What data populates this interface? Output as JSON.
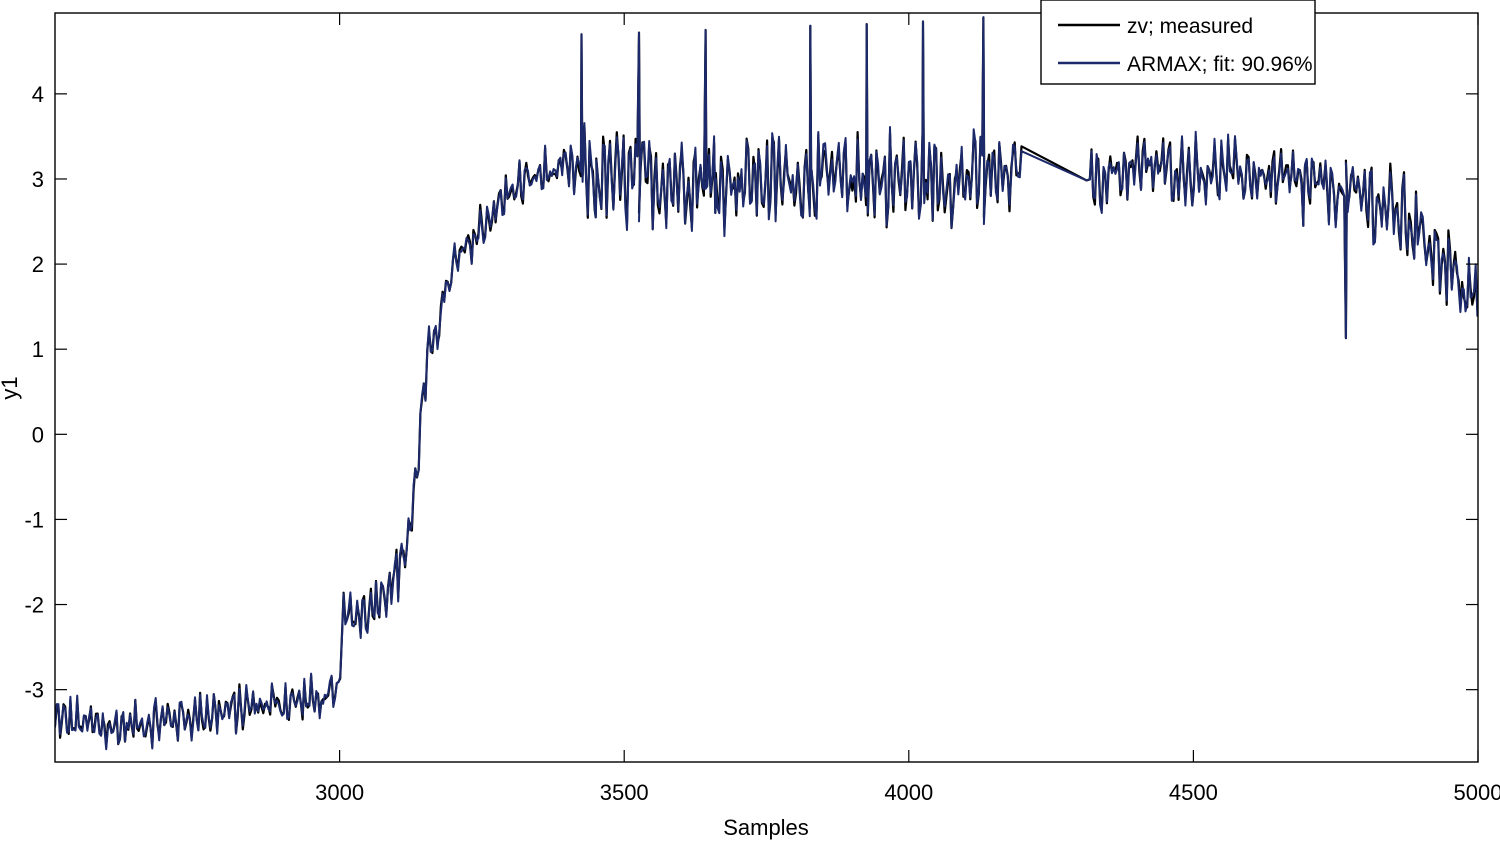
{
  "chart_data": {
    "type": "line",
    "title": "",
    "xlabel": "Samples",
    "ylabel": "y1",
    "xlim": [
      2500,
      5000
    ],
    "ylim": [
      -3.85,
      4.95
    ],
    "xticks": [
      3000,
      3500,
      4000,
      4500,
      5000
    ],
    "yticks": [
      -3,
      -2,
      -1,
      0,
      1,
      2,
      3,
      4
    ],
    "grid": false,
    "legend_position": "top-right",
    "series": [
      {
        "name": "zv; measured",
        "color": "#000000",
        "anchors": [
          [
            2500,
            -3.35
          ],
          [
            2600,
            -3.45
          ],
          [
            2700,
            -3.35
          ],
          [
            2800,
            -3.25
          ],
          [
            2900,
            -3.15
          ],
          [
            2998,
            -3.1
          ],
          [
            3003,
            -2.2
          ],
          [
            3050,
            -2.05
          ],
          [
            3100,
            -1.65
          ],
          [
            3125,
            -1.1
          ],
          [
            3135,
            -0.4
          ],
          [
            3150,
            0.6
          ],
          [
            3170,
            1.3
          ],
          [
            3200,
            1.95
          ],
          [
            3250,
            2.45
          ],
          [
            3300,
            2.85
          ],
          [
            3350,
            3.05
          ],
          [
            3400,
            3.1
          ],
          [
            3430,
            3.05
          ],
          [
            3500,
            3.0
          ],
          [
            3600,
            3.0
          ],
          [
            3700,
            3.0
          ],
          [
            3800,
            3.0
          ],
          [
            3900,
            3.0
          ],
          [
            4000,
            3.0
          ],
          [
            4100,
            3.0
          ],
          [
            4200,
            3.05
          ],
          [
            4310,
            2.98
          ],
          [
            4400,
            3.15
          ],
          [
            4500,
            3.1
          ],
          [
            4600,
            3.05
          ],
          [
            4700,
            2.95
          ],
          [
            4800,
            2.8
          ],
          [
            4870,
            2.55
          ],
          [
            4920,
            2.25
          ],
          [
            4960,
            1.85
          ],
          [
            5000,
            1.5
          ]
        ],
        "gap": [
          4200,
          4310
        ],
        "spikes": [
          [
            3425,
            4.7
          ],
          [
            3526,
            4.72
          ],
          [
            3643,
            4.75
          ],
          [
            3827,
            4.8
          ],
          [
            3926,
            4.82
          ],
          [
            4025,
            4.85
          ],
          [
            4131,
            4.9
          ],
          [
            3450,
            2.55
          ],
          [
            3660,
            2.6
          ],
          [
            4768,
            1.13
          ],
          [
            4693,
            2.45
          ]
        ]
      },
      {
        "name": "ARMAX; fit: 90.96%",
        "color": "#1c2a6b"
      }
    ]
  }
}
